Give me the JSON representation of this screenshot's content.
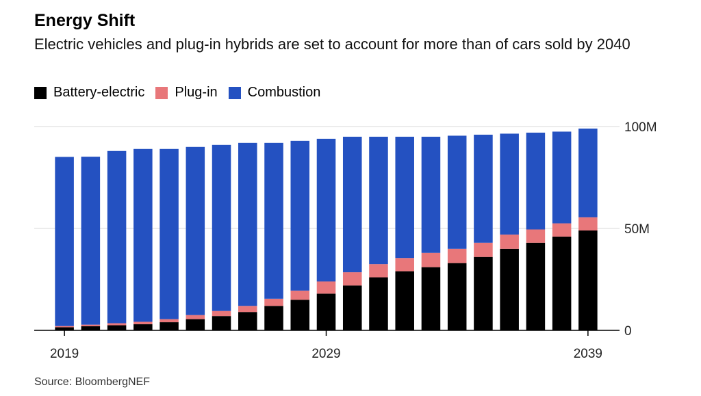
{
  "chart_data": {
    "type": "bar",
    "stacked": true,
    "title": "Energy Shift",
    "subtitle": "Electric vehicles and plug-in hybrids are set to account for more than of cars sold by 2040",
    "source": "Source: BloombergNEF",
    "x": [
      2019,
      2020,
      2021,
      2022,
      2023,
      2024,
      2025,
      2026,
      2027,
      2028,
      2029,
      2030,
      2031,
      2032,
      2033,
      2034,
      2035,
      2036,
      2037,
      2038,
      2039
    ],
    "x_tick_labels": [
      "2019",
      "2029",
      "2039"
    ],
    "y_tick_labels": [
      "100M",
      "50M",
      "0"
    ],
    "ylim": [
      0,
      100000000
    ],
    "legend_position": "top-left",
    "grid": true,
    "series": [
      {
        "name": "Battery-electric",
        "color": "#000000",
        "values": [
          1.5,
          2,
          2.5,
          3,
          4,
          5.5,
          7,
          9,
          12,
          15,
          18,
          22,
          26,
          29,
          31,
          33,
          36,
          40,
          43,
          46,
          49
        ]
      },
      {
        "name": "Plug-in",
        "color": "#e8777a",
        "values": [
          0.6,
          0.8,
          1,
          1.2,
          1.5,
          2,
          2.5,
          3,
          3.5,
          4.5,
          6,
          6.5,
          6.5,
          6.5,
          7,
          7,
          7,
          7,
          6.5,
          6.5,
          6.5
        ]
      },
      {
        "name": "Combustion",
        "color": "#2451c1",
        "values": [
          83,
          82.4,
          84.5,
          84.8,
          83.5,
          82.5,
          81.5,
          80,
          76.5,
          73.5,
          70,
          66.5,
          62.5,
          59.5,
          57,
          55.5,
          53,
          49.5,
          47.5,
          45,
          43.5
        ]
      }
    ],
    "unit_multiplier": 1000000
  }
}
